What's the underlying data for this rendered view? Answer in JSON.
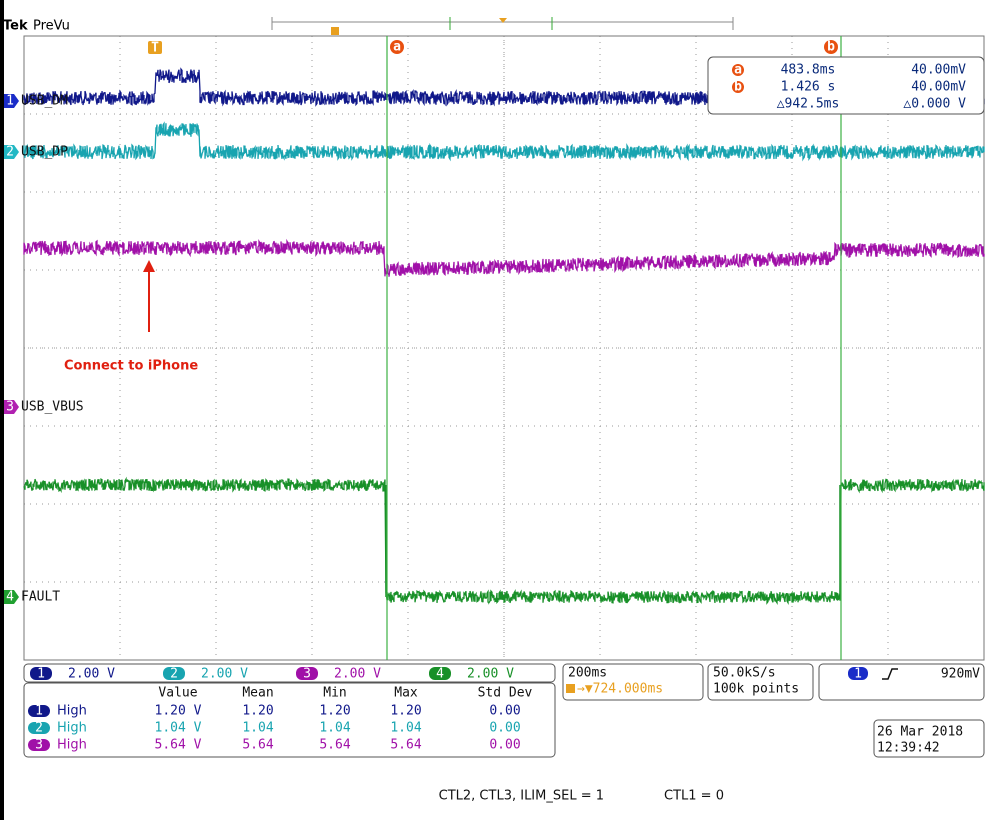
{
  "header": {
    "brand": "Tek",
    "mode": "PreVu"
  },
  "markers": {
    "trigger": "T",
    "cursor_a": "a",
    "cursor_b": "b"
  },
  "channels": [
    {
      "number": "1",
      "label": "USB_DM",
      "scale": "2.00 V"
    },
    {
      "number": "2",
      "label": "USB_DP",
      "scale": "2.00 V"
    },
    {
      "number": "3",
      "label": "USB_VBUS",
      "scale": "2.00 V"
    },
    {
      "number": "4",
      "label": "FAULT",
      "scale": "2.00 V"
    }
  ],
  "cursor_readout": {
    "a": {
      "marker": "a",
      "time": "483.8ms",
      "voltage": "40.00mV"
    },
    "b": {
      "marker": "b",
      "time": "1.426 s",
      "voltage": "40.00mV"
    },
    "delta": {
      "time": "△942.5ms",
      "voltage": "△0.000 V"
    }
  },
  "annotation": "Connect to iPhone",
  "measurements": {
    "columns": [
      "Value",
      "Mean",
      "Min",
      "Max",
      "Std Dev"
    ],
    "rows": [
      {
        "channel": "1",
        "name": "High",
        "cells": [
          "1.20 V",
          "1.20",
          "1.20",
          "1.20",
          "0.00"
        ]
      },
      {
        "channel": "2",
        "name": "High",
        "cells": [
          "1.04 V",
          "1.04",
          "1.04",
          "1.04",
          "0.00"
        ]
      },
      {
        "channel": "3",
        "name": "High",
        "cells": [
          "5.64 V",
          "5.64",
          "5.64",
          "5.64",
          "0.00"
        ]
      }
    ]
  },
  "timebase": {
    "scale": "200ms",
    "delay": "→▼724.000ms"
  },
  "acquisition": {
    "rate": "50.0kS/s",
    "points": "100k points"
  },
  "trigger": {
    "channel": "1",
    "level": "920mV"
  },
  "datetime": {
    "date": "26 Mar 2018",
    "time": "12:39:42"
  },
  "caption": {
    "left": "CTL2, CTL3, ILIM_SEL = 1",
    "right": "CTL1 = 0"
  }
}
